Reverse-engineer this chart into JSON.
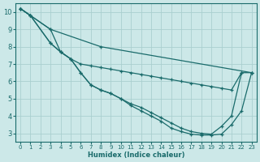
{
  "xlabel": "Humidex (Indice chaleur)",
  "bg_color": "#cce8e8",
  "grid_color": "#aacfcf",
  "line_color": "#1a6b6b",
  "marker": "+",
  "xlim": [
    -0.5,
    23.5
  ],
  "ylim": [
    2.5,
    10.5
  ],
  "xticks": [
    0,
    1,
    2,
    3,
    4,
    5,
    6,
    7,
    8,
    9,
    10,
    11,
    12,
    13,
    14,
    15,
    16,
    17,
    18,
    19,
    20,
    21,
    22,
    23
  ],
  "yticks": [
    3,
    4,
    5,
    6,
    7,
    8,
    9,
    10
  ],
  "lines": [
    {
      "x": [
        0,
        1,
        3,
        8,
        23
      ],
      "y": [
        10.2,
        9.8,
        9.0,
        8.0,
        6.5
      ]
    },
    {
      "x": [
        0,
        1,
        3,
        4,
        5,
        6,
        7,
        8,
        9,
        10,
        11,
        12,
        13,
        14,
        15,
        16,
        17,
        18,
        19,
        20,
        21,
        22
      ],
      "y": [
        10.2,
        9.8,
        9.0,
        7.7,
        7.3,
        7.0,
        6.9,
        6.8,
        6.7,
        6.6,
        6.5,
        6.4,
        6.3,
        6.2,
        6.1,
        6.0,
        5.9,
        5.8,
        5.7,
        5.6,
        5.5,
        6.5
      ]
    },
    {
      "x": [
        0,
        1,
        3,
        4,
        5,
        6,
        7,
        8,
        9,
        10,
        11,
        12,
        13,
        14,
        15,
        16,
        17,
        18,
        19,
        20,
        21,
        22,
        23
      ],
      "y": [
        10.2,
        9.8,
        8.2,
        7.7,
        7.3,
        6.5,
        5.8,
        5.5,
        5.3,
        5.0,
        4.7,
        4.5,
        4.2,
        3.9,
        3.6,
        3.3,
        3.1,
        3.0,
        2.95,
        3.4,
        4.0,
        6.5,
        6.5
      ]
    },
    {
      "x": [
        0,
        1,
        3,
        4,
        5,
        6,
        7,
        8,
        9,
        10,
        11,
        12,
        13,
        14,
        15,
        16,
        17,
        18,
        19,
        20,
        21,
        22,
        23
      ],
      "y": [
        10.2,
        9.8,
        8.2,
        7.7,
        7.3,
        6.5,
        5.8,
        5.5,
        5.3,
        5.0,
        4.6,
        4.3,
        4.0,
        3.7,
        3.3,
        3.1,
        2.95,
        2.9,
        2.9,
        2.95,
        3.5,
        4.3,
        6.5
      ]
    }
  ]
}
